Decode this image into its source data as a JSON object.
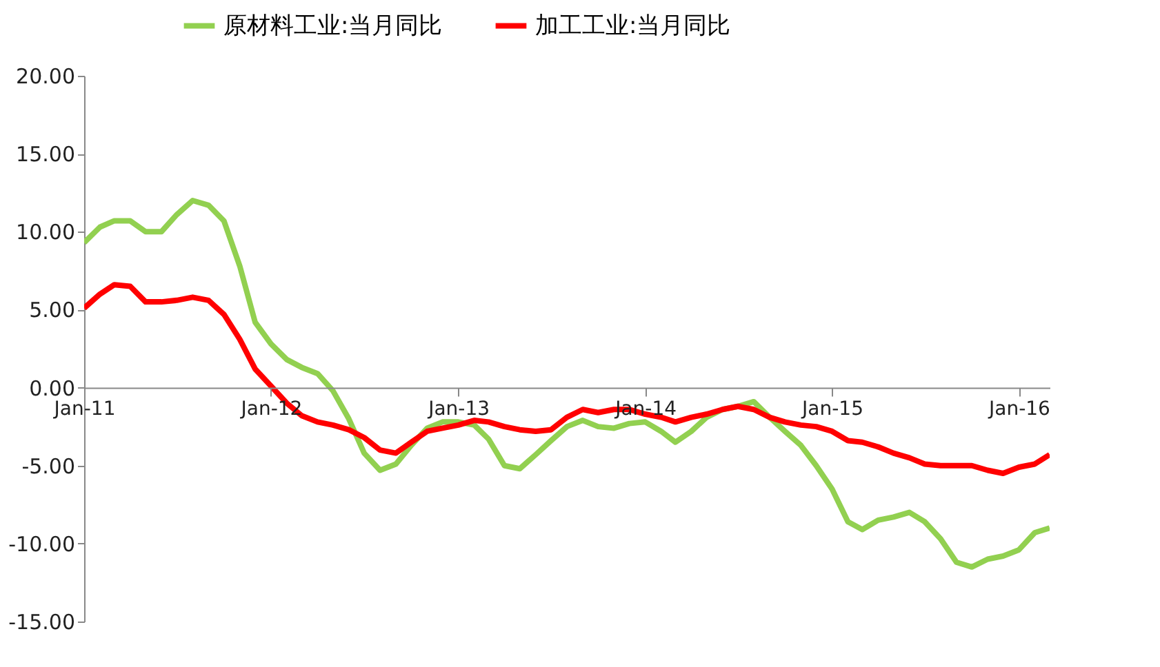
{
  "chart_data": {
    "type": "line",
    "x": [
      "2011-01",
      "2011-02",
      "2011-03",
      "2011-04",
      "2011-05",
      "2011-06",
      "2011-07",
      "2011-08",
      "2011-09",
      "2011-10",
      "2011-11",
      "2011-12",
      "2012-01",
      "2012-02",
      "2012-03",
      "2012-04",
      "2012-05",
      "2012-06",
      "2012-07",
      "2012-08",
      "2012-09",
      "2012-10",
      "2012-11",
      "2012-12",
      "2013-01",
      "2013-02",
      "2013-03",
      "2013-04",
      "2013-05",
      "2013-06",
      "2013-07",
      "2013-08",
      "2013-09",
      "2013-10",
      "2013-11",
      "2013-12",
      "2014-01",
      "2014-02",
      "2014-03",
      "2014-04",
      "2014-05",
      "2014-06",
      "2014-07",
      "2014-08",
      "2014-09",
      "2014-10",
      "2014-11",
      "2014-12",
      "2015-01",
      "2015-02",
      "2015-03",
      "2015-04",
      "2015-05",
      "2015-06",
      "2015-07",
      "2015-08",
      "2015-09",
      "2015-10",
      "2015-11",
      "2015-12",
      "2016-01",
      "2016-02",
      "2016-03"
    ],
    "series": [
      {
        "name": "原材料工业:当月同比",
        "color": "#92d050",
        "values": [
          9.3,
          10.3,
          10.7,
          10.7,
          10.0,
          10.0,
          11.1,
          12.0,
          11.7,
          10.7,
          7.8,
          4.2,
          2.8,
          1.8,
          1.3,
          0.9,
          -0.2,
          -2.0,
          -4.2,
          -5.3,
          -4.9,
          -3.7,
          -2.6,
          -2.2,
          -2.2,
          -2.4,
          -3.3,
          -5.0,
          -5.2,
          -4.3,
          -3.4,
          -2.5,
          -2.1,
          -2.5,
          -2.6,
          -2.3,
          -2.2,
          -2.8,
          -3.5,
          -2.8,
          -1.9,
          -1.4,
          -1.2,
          -0.9,
          -1.9,
          -2.8,
          -3.7,
          -5.0,
          -6.5,
          -8.6,
          -9.1,
          -8.5,
          -8.3,
          -8.0,
          -8.6,
          -9.7,
          -11.2,
          -11.5,
          -11.0,
          -10.8,
          -10.4,
          -9.3,
          -9.0
        ]
      },
      {
        "name": "加工工业:当月同比",
        "color": "#ff0000",
        "values": [
          5.1,
          6.0,
          6.6,
          6.5,
          5.5,
          5.5,
          5.6,
          5.8,
          5.6,
          4.7,
          3.1,
          1.2,
          0.1,
          -1.0,
          -1.8,
          -2.2,
          -2.4,
          -2.7,
          -3.2,
          -4.0,
          -4.2,
          -3.5,
          -2.8,
          -2.6,
          -2.4,
          -2.1,
          -2.2,
          -2.5,
          -2.7,
          -2.8,
          -2.7,
          -1.9,
          -1.4,
          -1.6,
          -1.4,
          -1.4,
          -1.7,
          -1.9,
          -2.2,
          -1.9,
          -1.7,
          -1.4,
          -1.2,
          -1.4,
          -1.9,
          -2.2,
          -2.4,
          -2.5,
          -2.8,
          -3.4,
          -3.5,
          -3.8,
          -4.2,
          -4.5,
          -4.9,
          -5.0,
          -5.0,
          -5.0,
          -5.3,
          -5.5,
          -5.1,
          -4.9,
          -4.3
        ]
      }
    ],
    "xlim": [
      "2011-01",
      "2016-03"
    ],
    "xticks": [
      {
        "value": "2011-01",
        "label": "Jan-11"
      },
      {
        "value": "2012-01",
        "label": "Jan-12"
      },
      {
        "value": "2013-01",
        "label": "Jan-13"
      },
      {
        "value": "2014-01",
        "label": "Jan-14"
      },
      {
        "value": "2015-01",
        "label": "Jan-15"
      },
      {
        "value": "2016-01",
        "label": "Jan-16"
      }
    ],
    "ylim": [
      -15,
      20
    ],
    "yticks": [
      {
        "value": -15,
        "label": "-15.00"
      },
      {
        "value": -10,
        "label": "-10.00"
      },
      {
        "value": -5,
        "label": "-5.00"
      },
      {
        "value": 0,
        "label": "0.00"
      },
      {
        "value": 5,
        "label": "5.00"
      },
      {
        "value": 10,
        "label": "10.00"
      },
      {
        "value": 15,
        "label": "15.00"
      },
      {
        "value": 20,
        "label": "20.00"
      }
    ],
    "grid": false,
    "legend": "top",
    "marker": "none",
    "line_style": "solid"
  }
}
